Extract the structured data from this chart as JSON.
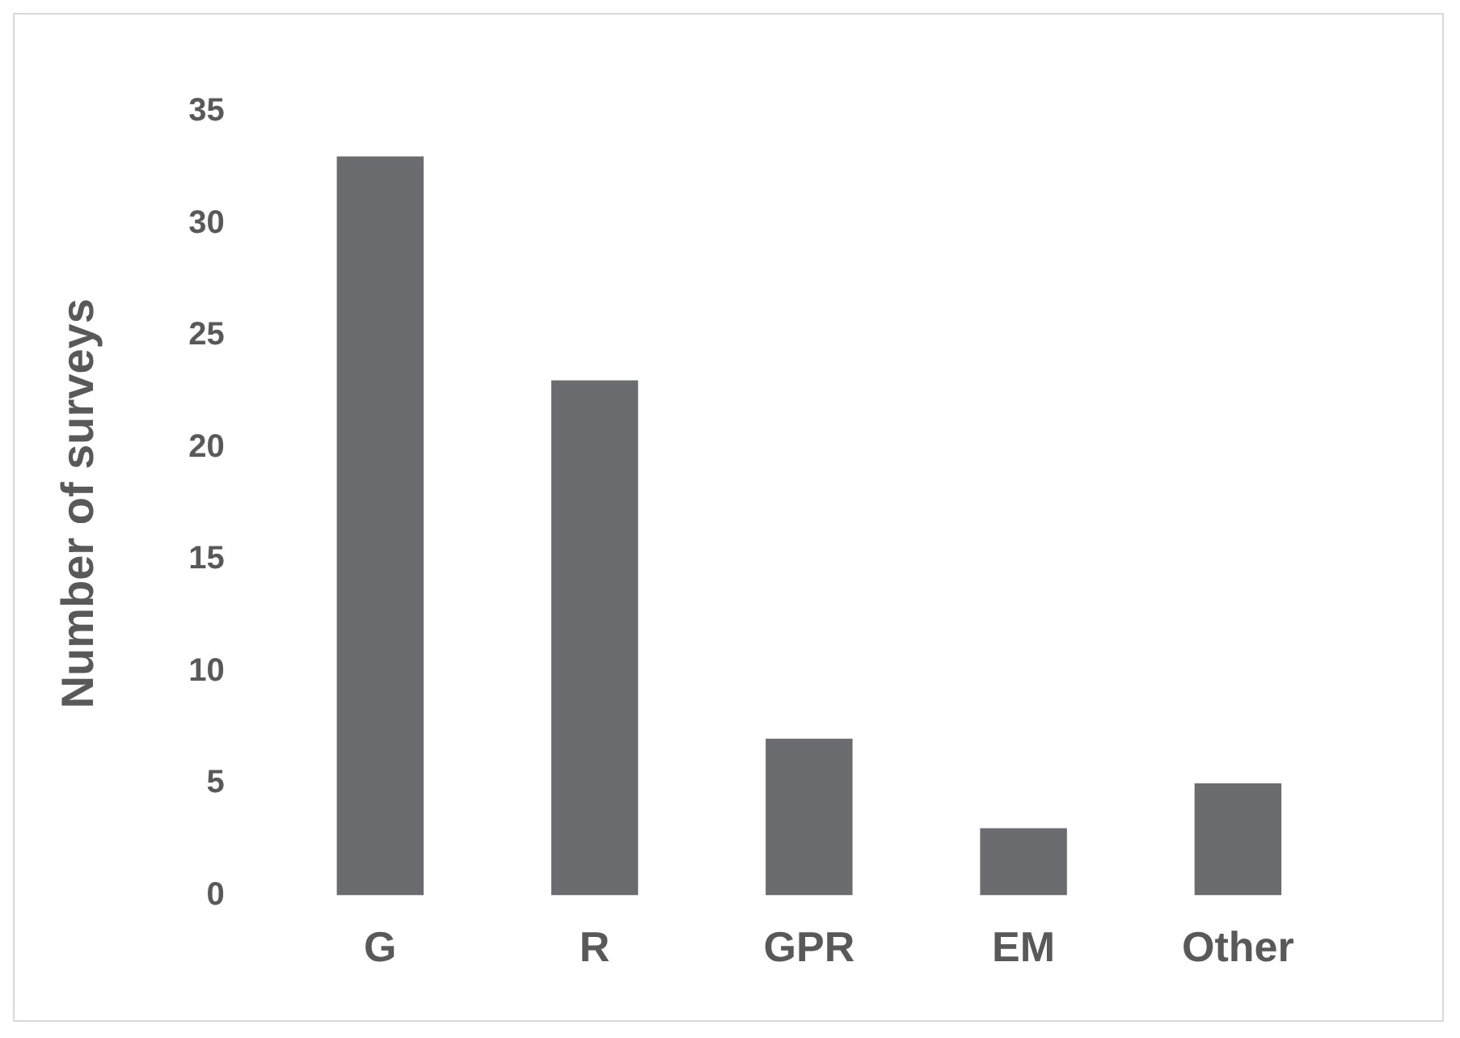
{
  "chart_data": {
    "type": "bar",
    "ylabel": "Number of surveys",
    "categories": [
      "G",
      "R",
      "GPR",
      "EM",
      "Other"
    ],
    "values": [
      33,
      23,
      7,
      3,
      5
    ],
    "color": "#6b6c70",
    "ylim": [
      0,
      35
    ],
    "yticks": [
      0,
      5,
      10,
      15,
      20,
      25,
      30,
      35
    ],
    "grid": false,
    "legend": false
  }
}
